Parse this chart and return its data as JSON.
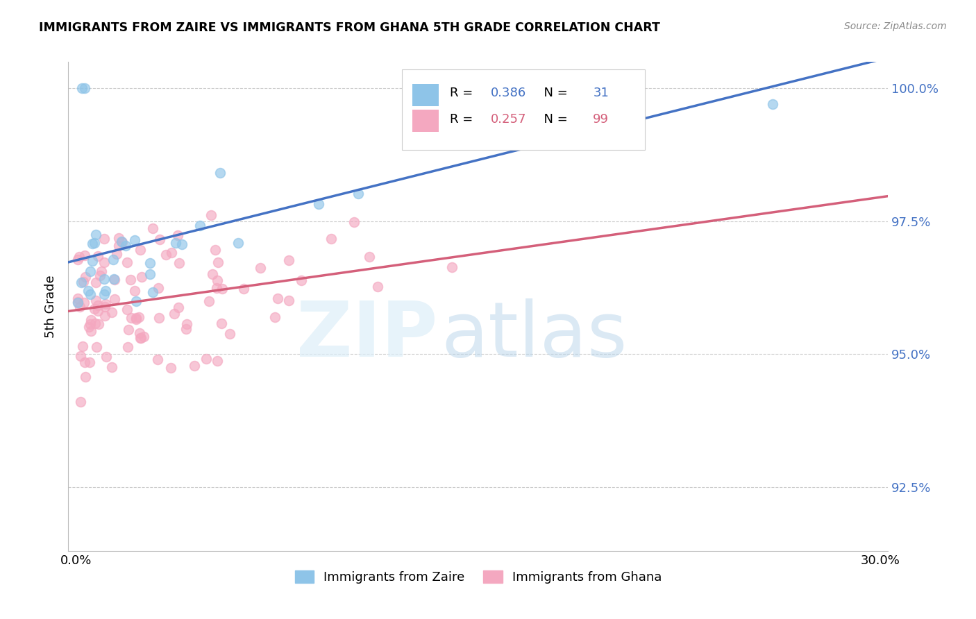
{
  "title": "IMMIGRANTS FROM ZAIRE VS IMMIGRANTS FROM GHANA 5TH GRADE CORRELATION CHART",
  "source": "Source: ZipAtlas.com",
  "ylabel": "5th Grade",
  "xlim": [
    -0.003,
    0.303
  ],
  "ylim": [
    0.913,
    1.005
  ],
  "x_ticks": [
    0.0,
    0.05,
    0.1,
    0.15,
    0.2,
    0.25,
    0.3
  ],
  "x_tick_labels": [
    "0.0%",
    "",
    "",
    "",
    "",
    "",
    "30.0%"
  ],
  "y_ticks_right": [
    0.925,
    0.95,
    0.975,
    1.0
  ],
  "y_tick_labels_right": [
    "92.5%",
    "95.0%",
    "97.5%",
    "100.0%"
  ],
  "zaire_R": 0.386,
  "zaire_N": 31,
  "ghana_R": 0.257,
  "ghana_N": 99,
  "zaire_color": "#8ec4e8",
  "ghana_color": "#f4a8c0",
  "zaire_line_color": "#4472c4",
  "ghana_line_color": "#d45f7a",
  "legend_label_zaire": "Immigrants from Zaire",
  "legend_label_ghana": "Immigrants from Ghana",
  "zaire_seed": 42,
  "ghana_seed": 99,
  "marker_size": 100,
  "marker_alpha": 0.65
}
